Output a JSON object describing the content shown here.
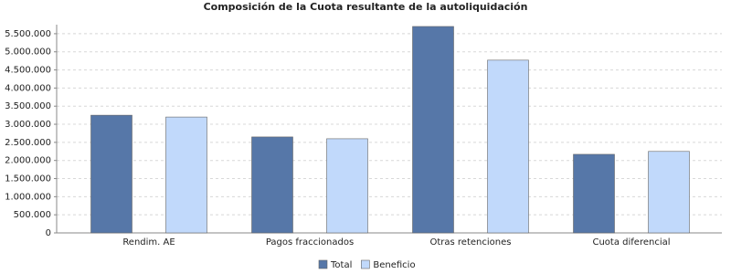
{
  "chart_data": {
    "type": "bar",
    "title": "Composición de la Cuota resultante de la autoliquidación",
    "categories": [
      "Rendim. AE",
      "Pagos fraccionados",
      "Otras retenciones",
      "Cuota diferencial"
    ],
    "series": [
      {
        "name": "Total",
        "color": "#5677a8",
        "values": [
          3250000,
          2650000,
          5700000,
          2170000
        ]
      },
      {
        "name": "Beneficio",
        "color": "#c1d9fb",
        "values": [
          3200000,
          2600000,
          4770000,
          2250000
        ]
      }
    ],
    "ylim": [
      0,
      5750000
    ],
    "yticks": [
      {
        "value": 0,
        "label": "0"
      },
      {
        "value": 500000,
        "label": "500.000"
      },
      {
        "value": 1000000,
        "label": "1.000.000"
      },
      {
        "value": 1500000,
        "label": "1.500.000"
      },
      {
        "value": 2000000,
        "label": "2.000.000"
      },
      {
        "value": 2500000,
        "label": "2.500.000"
      },
      {
        "value": 3000000,
        "label": "3.000.000"
      },
      {
        "value": 3500000,
        "label": "3.500.000"
      },
      {
        "value": 4000000,
        "label": "4.000.000"
      },
      {
        "value": 4500000,
        "label": "4.500.000"
      },
      {
        "value": 5000000,
        "label": "5.000.000"
      },
      {
        "value": 5500000,
        "label": "5.500.000"
      }
    ],
    "grid": true
  }
}
